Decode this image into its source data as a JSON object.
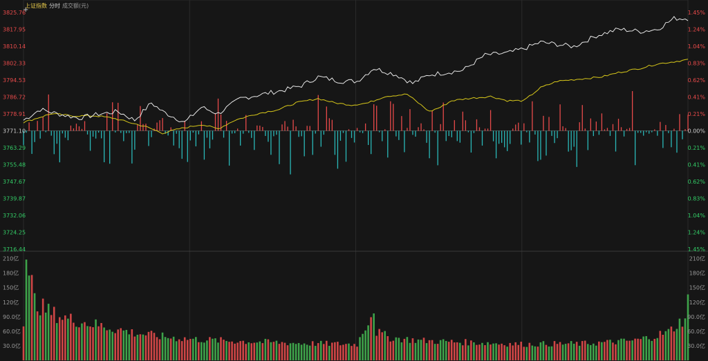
{
  "header": {
    "title": "上证指数",
    "tab_intraday": "分时",
    "volume_label": "成交额(元)",
    "cursor_glyph": "+"
  },
  "colors": {
    "background": "#161616",
    "price_line": "#e8e8e8",
    "avg_line": "#d8c81a",
    "up": "#e84a4a",
    "down": "#2ab8b8",
    "vol_up": "#d04646",
    "vol_down": "#3ea34a",
    "grid": "#2a2a2a",
    "label_up": "#e84a4a",
    "label_down": "#33cc66",
    "label_neutral": "#cccccc"
  },
  "chart_data": [
    {
      "type": "line",
      "name": "price",
      "y_left_ticks": [
        "3825.76",
        "3817.95",
        "3810.14",
        "3802.33",
        "3794.53",
        "3786.72",
        "3778.91",
        "3771.10",
        "3763.29",
        "3755.48",
        "3747.67",
        "3739.87",
        "3732.06",
        "3724.25",
        "3716.44"
      ],
      "y_right_ticks": [
        "1.45%",
        "1.24%",
        "1.04%",
        "0.83%",
        "0.62%",
        "0.41%",
        "0.21%",
        "0.00%",
        "0.21%",
        "0.41%",
        "0.62%",
        "0.83%",
        "1.04%",
        "1.24%",
        "1.45%"
      ],
      "ylim": [
        3716.44,
        3825.76
      ],
      "baseline": 3771.1,
      "points": 240,
      "series": [
        {
          "name": "price",
          "keyframes": [
            [
              0,
              3776
            ],
            [
              6,
              3781
            ],
            [
              12,
              3779
            ],
            [
              20,
              3777
            ],
            [
              28,
              3779
            ],
            [
              34,
              3780
            ],
            [
              40,
              3776
            ],
            [
              46,
              3784
            ],
            [
              50,
              3780
            ],
            [
              58,
              3775
            ],
            [
              64,
              3782
            ],
            [
              70,
              3779
            ],
            [
              78,
              3786
            ],
            [
              86,
              3788
            ],
            [
              94,
              3790
            ],
            [
              100,
              3792
            ],
            [
              106,
              3796
            ],
            [
              114,
              3794
            ],
            [
              120,
              3794
            ],
            [
              126,
              3800
            ],
            [
              134,
              3797
            ],
            [
              140,
              3793
            ],
            [
              146,
              3797
            ],
            [
              152,
              3798
            ],
            [
              158,
              3799
            ],
            [
              166,
              3806
            ],
            [
              174,
              3807
            ],
            [
              180,
              3809
            ],
            [
              186,
              3812
            ],
            [
              192,
              3811
            ],
            [
              198,
              3810
            ],
            [
              206,
              3815
            ],
            [
              214,
              3818
            ],
            [
              222,
              3817
            ],
            [
              228,
              3818
            ],
            [
              234,
              3823
            ],
            [
              239,
              3823
            ]
          ]
        },
        {
          "name": "average",
          "keyframes": [
            [
              0,
              3775
            ],
            [
              10,
              3779
            ],
            [
              18,
              3778
            ],
            [
              26,
              3778
            ],
            [
              32,
              3777
            ],
            [
              38,
              3775
            ],
            [
              44,
              3773
            ],
            [
              48,
              3771
            ],
            [
              50,
              3770
            ],
            [
              56,
              3772
            ],
            [
              64,
              3774
            ],
            [
              70,
              3772
            ],
            [
              76,
              3776
            ],
            [
              84,
              3779
            ],
            [
              92,
              3781
            ],
            [
              98,
              3784
            ],
            [
              106,
              3786
            ],
            [
              112,
              3784
            ],
            [
              118,
              3783
            ],
            [
              124,
              3784
            ],
            [
              130,
              3787
            ],
            [
              138,
              3788
            ],
            [
              146,
              3780
            ],
            [
              150,
              3782
            ],
            [
              154,
              3785
            ],
            [
              160,
              3786
            ],
            [
              168,
              3787
            ],
            [
              174,
              3785
            ],
            [
              180,
              3785
            ],
            [
              186,
              3791
            ],
            [
              192,
              3794
            ],
            [
              200,
              3795
            ],
            [
              208,
              3796
            ],
            [
              214,
              3798
            ],
            [
              222,
              3800
            ],
            [
              228,
              3802
            ],
            [
              234,
              3803
            ],
            [
              239,
              3804
            ]
          ]
        }
      ],
      "diff_bars": {
        "count": 240,
        "range": [
          -8,
          6
        ]
      }
    },
    {
      "type": "bar",
      "name": "volume",
      "y_ticks": [
        "210亿",
        "180亿",
        "150亿",
        "120亿",
        "90.0亿",
        "60.0亿",
        "30.0亿"
      ],
      "ylim": [
        0,
        218
      ],
      "count": 240,
      "keyframes": [
        [
          0,
          70
        ],
        [
          1,
          208
        ],
        [
          2,
          175
        ],
        [
          3,
          160
        ],
        [
          4,
          128
        ],
        [
          6,
          115
        ],
        [
          10,
          100
        ],
        [
          16,
          88
        ],
        [
          24,
          78
        ],
        [
          32,
          68
        ],
        [
          40,
          58
        ],
        [
          50,
          50
        ],
        [
          60,
          45
        ],
        [
          70,
          42
        ],
        [
          80,
          40
        ],
        [
          90,
          38
        ],
        [
          100,
          36
        ],
        [
          110,
          35
        ],
        [
          120,
          34
        ],
        [
          126,
          110
        ],
        [
          127,
          60
        ],
        [
          132,
          48
        ],
        [
          142,
          42
        ],
        [
          150,
          40
        ],
        [
          160,
          38
        ],
        [
          170,
          36
        ],
        [
          180,
          34
        ],
        [
          190,
          35
        ],
        [
          200,
          35
        ],
        [
          210,
          38
        ],
        [
          220,
          42
        ],
        [
          226,
          50
        ],
        [
          232,
          60
        ],
        [
          236,
          80
        ],
        [
          238,
          90
        ],
        [
          239,
          125
        ]
      ]
    }
  ]
}
